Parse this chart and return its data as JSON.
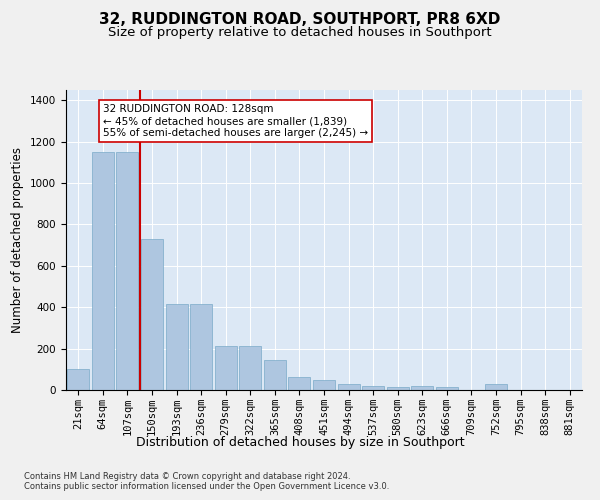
{
  "title": "32, RUDDINGTON ROAD, SOUTHPORT, PR8 6XD",
  "subtitle": "Size of property relative to detached houses in Southport",
  "xlabel": "Distribution of detached houses by size in Southport",
  "ylabel": "Number of detached properties",
  "footnote1": "Contains HM Land Registry data © Crown copyright and database right 2024.",
  "footnote2": "Contains public sector information licensed under the Open Government Licence v3.0.",
  "categories": [
    "21sqm",
    "64sqm",
    "107sqm",
    "150sqm",
    "193sqm",
    "236sqm",
    "279sqm",
    "322sqm",
    "365sqm",
    "408sqm",
    "451sqm",
    "494sqm",
    "537sqm",
    "580sqm",
    "623sqm",
    "666sqm",
    "709sqm",
    "752sqm",
    "795sqm",
    "838sqm",
    "881sqm"
  ],
  "values": [
    100,
    1150,
    1150,
    730,
    415,
    415,
    215,
    215,
    145,
    65,
    48,
    30,
    20,
    15,
    20,
    15,
    0,
    30,
    0,
    0,
    0
  ],
  "bar_color": "#aec6e0",
  "bar_edge_color": "#7aaac8",
  "vline_x_index": 2.5,
  "vline_color": "#cc0000",
  "annotation_text": "32 RUDDINGTON ROAD: 128sqm\n← 45% of detached houses are smaller (1,839)\n55% of semi-detached houses are larger (2,245) →",
  "annotation_box_color": "#ffffff",
  "annotation_box_edge": "#cc0000",
  "ylim": [
    0,
    1450
  ],
  "yticks": [
    0,
    200,
    400,
    600,
    800,
    1000,
    1200,
    1400
  ],
  "plot_bg_color": "#dce8f5",
  "fig_bg_color": "#f0f0f0",
  "title_fontsize": 11,
  "subtitle_fontsize": 9.5,
  "xlabel_fontsize": 9,
  "ylabel_fontsize": 8.5,
  "tick_fontsize": 7.5,
  "annot_fontsize": 7.5,
  "footnote_fontsize": 6
}
